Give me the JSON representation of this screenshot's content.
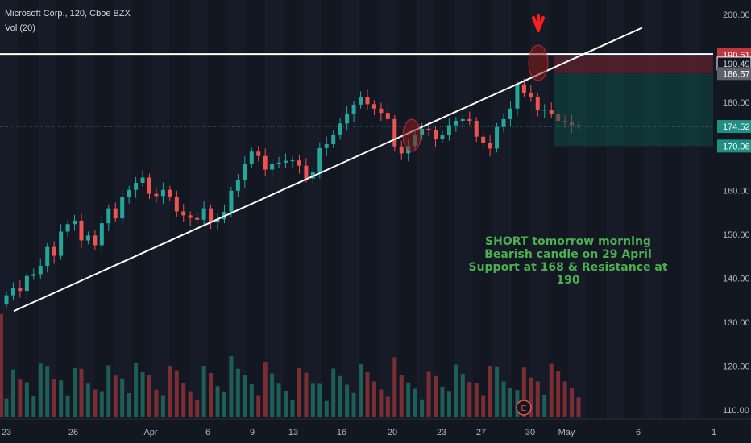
{
  "header": {
    "title": "Microsoft Corp., 120, Cboe BZX",
    "volume_label": "Vol (20)"
  },
  "colors": {
    "background": "#131722",
    "up": "#26a69a",
    "down": "#ef5350",
    "vol_up": "#1e5e57",
    "vol_down": "#7a2e33",
    "annotation": "#4caf50",
    "arrow": "#ff1e1e"
  },
  "chart_data": {
    "type": "candlestick",
    "symbol": "Microsoft Corp.",
    "interval": "120",
    "exchange": "Cboe BZX",
    "ylim": [
      107,
      202
    ],
    "y_ticks": [
      "200.00",
      "190.00",
      "180.00",
      "170.00",
      "160.00",
      "150.00",
      "140.00",
      "130.00",
      "120.00",
      "110.00"
    ],
    "x_ticks": [
      "23",
      "26",
      "Apr",
      "6",
      "9",
      "13",
      "16",
      "20",
      "23",
      "27",
      "30",
      "May",
      "6",
      "1"
    ],
    "price_labels": [
      "190.51",
      "190.49",
      "186.57",
      "174.52",
      "170.06"
    ],
    "series": [
      {
        "close": [
          136.1,
          137.8,
          137.1,
          140.5,
          140.9,
          142.8,
          147.1,
          145.1,
          150.6,
          152.3,
          153.1,
          148.6,
          149.7,
          147.5,
          152.5,
          155.9,
          153.6,
          158.5,
          160.1,
          161.7,
          162.9,
          159.2,
          158.7,
          160.1,
          158.6,
          155.2,
          154.3,
          153.7,
          153.3,
          155.9,
          152.7,
          153.4,
          155.1,
          159.9,
          162.4,
          166.0,
          168.8,
          167.8,
          164.7,
          166.0,
          166.3,
          166.7,
          166.8,
          165.6,
          162.7,
          164.2,
          169.6,
          170.5,
          172.7,
          175.2,
          177.4,
          179.5,
          181.2,
          179.6,
          178.6,
          177.6,
          176.2,
          170.0,
          168.4,
          170.1,
          172.7,
          174.0,
          173.8,
          171.7,
          172.5,
          174.8,
          175.8,
          176.2,
          175.8,
          172.2,
          170.8,
          169.5,
          174.4,
          176.2,
          178.6,
          184.1,
          182.2,
          181.3,
          178.3,
          178.3,
          177.3,
          175.8,
          175.6,
          174.8,
          174.5
        ]
      }
    ],
    "trendline": {
      "from": {
        "x": "Mar 23",
        "y": 132.5
      },
      "to": {
        "x": "May 6",
        "y": 197.0
      }
    },
    "resistance_line": 191.0,
    "short_position": {
      "entry": 186.57,
      "stop": 190.51,
      "target": 170.06
    },
    "annotations": [
      "SHORT tomorrow morning",
      "Bearish candle on 29 April",
      "Support at 168 & Resistance at 190"
    ],
    "last_price": 174.52
  }
}
